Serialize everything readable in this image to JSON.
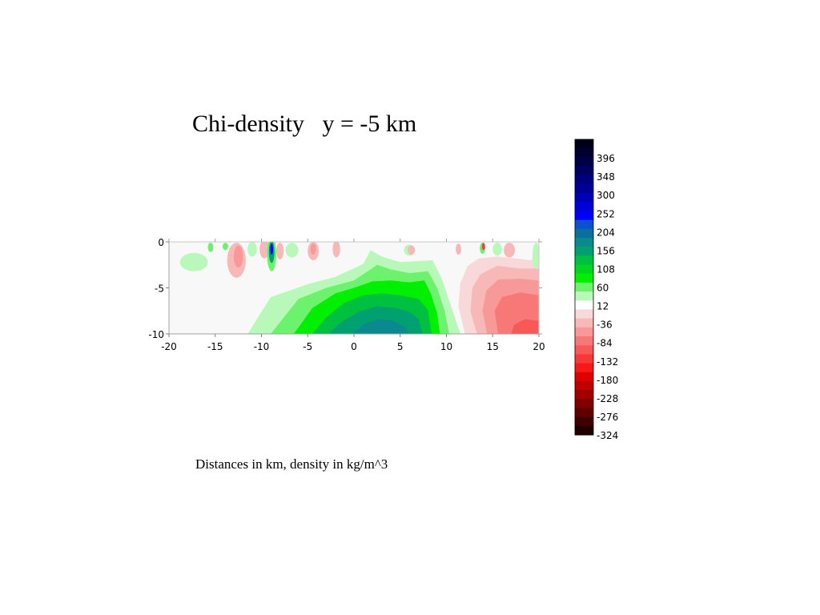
{
  "title": "Chi-density   y = -5 km",
  "caption": "Distances in km, density in kg/m^3",
  "chart_data": {
    "type": "heatmap",
    "xlim": [
      -20,
      20
    ],
    "ylim": [
      -10,
      0
    ],
    "x_ticks": [
      -20,
      -15,
      -10,
      -5,
      0,
      5,
      10,
      15,
      20
    ],
    "x_tick_labels": [
      "-20",
      "-15",
      "-10",
      "-5",
      "0",
      "5",
      "10",
      "15",
      "20"
    ],
    "y_ticks": [
      0,
      -5,
      -10
    ],
    "y_tick_labels": [
      "0",
      "-5",
      "-10"
    ],
    "colorbar": {
      "tick_values": [
        396,
        348,
        300,
        252,
        204,
        156,
        108,
        60,
        12,
        -36,
        -84,
        -132,
        -180,
        -228,
        -276,
        -324
      ],
      "tick_labels": [
        "396",
        "348",
        "300",
        "252",
        "204",
        "156",
        "108",
        "60",
        "12",
        "-36",
        "-84",
        "-132",
        "-180",
        "-228",
        "-276",
        "-324"
      ],
      "levels": [
        {
          "value": 444,
          "color": "#000018"
        },
        {
          "value": 420,
          "color": "#000030"
        },
        {
          "value": 396,
          "color": "#00004a"
        },
        {
          "value": 372,
          "color": "#000064"
        },
        {
          "value": 348,
          "color": "#00007e"
        },
        {
          "value": 324,
          "color": "#000098"
        },
        {
          "value": 300,
          "color": "#0000b8"
        },
        {
          "value": 276,
          "color": "#0000d8"
        },
        {
          "value": 252,
          "color": "#0000f8"
        },
        {
          "value": 228,
          "color": "#0a50d0"
        },
        {
          "value": 204,
          "color": "#0a6f9a"
        },
        {
          "value": 180,
          "color": "#0a8a8e"
        },
        {
          "value": 156,
          "color": "#00a070"
        },
        {
          "value": 132,
          "color": "#00c040"
        },
        {
          "value": 108,
          "color": "#00d820"
        },
        {
          "value": 84,
          "color": "#00f000"
        },
        {
          "value": 60,
          "color": "#6cf26c"
        },
        {
          "value": 36,
          "color": "#b8f8b8"
        },
        {
          "value": 12,
          "color": "#ffffff"
        },
        {
          "value": -12,
          "color": "#f8d8d8"
        },
        {
          "value": -36,
          "color": "#f8b8b8"
        },
        {
          "value": -60,
          "color": "#f89898"
        },
        {
          "value": -84,
          "color": "#f87878"
        },
        {
          "value": -108,
          "color": "#f85858"
        },
        {
          "value": -132,
          "color": "#f83838"
        },
        {
          "value": -156,
          "color": "#f81818"
        },
        {
          "value": -180,
          "color": "#e00000"
        },
        {
          "value": -204,
          "color": "#c00000"
        },
        {
          "value": -228,
          "color": "#a00000"
        },
        {
          "value": -252,
          "color": "#800000"
        },
        {
          "value": -276,
          "color": "#600000"
        },
        {
          "value": -300,
          "color": "#400000"
        },
        {
          "value": -324,
          "color": "#200000"
        }
      ]
    },
    "regions": [
      {
        "level": 36,
        "color": "#b8f8b8",
        "points": [
          [
            -11.5,
            -10
          ],
          [
            -9,
            -6
          ],
          [
            -5,
            -4.6
          ],
          [
            -2,
            -3.8
          ],
          [
            1,
            -2.4
          ],
          [
            1.8,
            -0.9
          ],
          [
            3,
            -1.6
          ],
          [
            5,
            -2.2
          ],
          [
            8.5,
            -2.0
          ],
          [
            9.5,
            -4
          ],
          [
            10.5,
            -7
          ],
          [
            11.5,
            -10
          ]
        ]
      },
      {
        "level": 60,
        "color": "#6cf26c",
        "points": [
          [
            -9,
            -10
          ],
          [
            -6,
            -6.2
          ],
          [
            -3,
            -5.0
          ],
          [
            0,
            -4.2
          ],
          [
            1.5,
            -3.2
          ],
          [
            2.5,
            -2.5
          ],
          [
            4,
            -3
          ],
          [
            6,
            -3.4
          ],
          [
            8.0,
            -3.2
          ],
          [
            9,
            -5
          ],
          [
            9.8,
            -7.5
          ],
          [
            10.3,
            -10
          ]
        ]
      },
      {
        "level": 108,
        "color": "#00f000",
        "points": [
          [
            -6.5,
            -10
          ],
          [
            -4.5,
            -7.2
          ],
          [
            -2,
            -5.6
          ],
          [
            0,
            -5.0
          ],
          [
            2,
            -4.3
          ],
          [
            4,
            -4.2
          ],
          [
            6,
            -4.4
          ],
          [
            7.6,
            -4.2
          ],
          [
            8.3,
            -5.6
          ],
          [
            9,
            -7.8
          ],
          [
            9.3,
            -10
          ]
        ]
      },
      {
        "level": 132,
        "color": "#00c040",
        "points": [
          [
            -4.5,
            -10
          ],
          [
            -3,
            -8.2
          ],
          [
            -1,
            -6.6
          ],
          [
            1,
            -5.8
          ],
          [
            3,
            -5.6
          ],
          [
            5,
            -5.8
          ],
          [
            7,
            -6.2
          ],
          [
            8,
            -7.4
          ],
          [
            8.4,
            -10
          ]
        ]
      },
      {
        "level": 156,
        "color": "#00a070",
        "points": [
          [
            -2.8,
            -10
          ],
          [
            -1.5,
            -8.8
          ],
          [
            0.5,
            -7.6
          ],
          [
            2.5,
            -7.0
          ],
          [
            4.5,
            -7.2
          ],
          [
            6,
            -7.6
          ],
          [
            7,
            -8.4
          ],
          [
            7.4,
            -10
          ]
        ]
      },
      {
        "level": 180,
        "color": "#0a8a8e",
        "points": [
          [
            -0.2,
            -10
          ],
          [
            1,
            -9
          ],
          [
            2.5,
            -8.4
          ],
          [
            4,
            -8.5
          ],
          [
            5.5,
            -9.2
          ],
          [
            6,
            -10
          ]
        ]
      },
      {
        "level": -12,
        "color": "#f8d8d8",
        "points": [
          [
            12,
            -10
          ],
          [
            11.3,
            -7
          ],
          [
            11.5,
            -4.5
          ],
          [
            12.3,
            -2.6
          ],
          [
            13.5,
            -1.8
          ],
          [
            15.5,
            -1.6
          ],
          [
            17.5,
            -1.8
          ],
          [
            19,
            -2.0
          ],
          [
            20,
            -1.7
          ],
          [
            20,
            -10
          ]
        ]
      },
      {
        "level": -36,
        "color": "#f8b8b8",
        "points": [
          [
            13.3,
            -10
          ],
          [
            12.6,
            -7.5
          ],
          [
            12.8,
            -5
          ],
          [
            13.7,
            -3.5
          ],
          [
            15.5,
            -2.6
          ],
          [
            18,
            -2.9
          ],
          [
            20,
            -2.9
          ],
          [
            20,
            -10
          ]
        ]
      },
      {
        "level": -60,
        "color": "#f89898",
        "points": [
          [
            14.4,
            -10
          ],
          [
            13.9,
            -7.5
          ],
          [
            14.3,
            -5.3
          ],
          [
            15.6,
            -4.1
          ],
          [
            18,
            -4.0
          ],
          [
            20,
            -4.2
          ],
          [
            20,
            -10
          ]
        ]
      },
      {
        "level": -84,
        "color": "#f87878",
        "points": [
          [
            15.6,
            -10
          ],
          [
            15.2,
            -7.5
          ],
          [
            16.0,
            -6.0
          ],
          [
            18,
            -5.5
          ],
          [
            20,
            -5.8
          ],
          [
            20,
            -10
          ]
        ]
      },
      {
        "level": -108,
        "color": "#f85858",
        "points": [
          [
            17,
            -10
          ],
          [
            17.3,
            -9
          ],
          [
            18.5,
            -8.4
          ],
          [
            20,
            -8.6
          ],
          [
            20,
            -10
          ]
        ]
      }
    ],
    "blobs": [
      {
        "level": 36,
        "color": "#b8f8b8",
        "cx": -17.3,
        "cy": -2.2,
        "rx": 1.5,
        "ry": 1.0
      },
      {
        "level": 60,
        "color": "#6cf26c",
        "cx": -15.5,
        "cy": -0.6,
        "rx": 0.3,
        "ry": 0.5
      },
      {
        "level": 60,
        "color": "#6cf26c",
        "cx": -13.9,
        "cy": -0.5,
        "rx": 0.3,
        "ry": 0.4
      },
      {
        "level": -36,
        "color": "#f8b8b8",
        "cx": -12.7,
        "cy": -2.0,
        "rx": 1.0,
        "ry": 1.9
      },
      {
        "level": -60,
        "color": "#f89898",
        "cx": -12.5,
        "cy": -1.6,
        "rx": 0.5,
        "ry": 1.2
      },
      {
        "level": 36,
        "color": "#b8f8b8",
        "cx": -11.0,
        "cy": -0.8,
        "rx": 0.5,
        "ry": 0.8
      },
      {
        "level": -36,
        "color": "#f8b8b8",
        "cx": -9.7,
        "cy": -0.8,
        "rx": 0.5,
        "ry": 1.0
      },
      {
        "level": 60,
        "color": "#6cf26c",
        "cx": -8.9,
        "cy": -1.3,
        "rx": 0.5,
        "ry": 1.9
      },
      {
        "level": 156,
        "color": "#00a070",
        "cx": -8.9,
        "cy": -1.1,
        "rx": 0.3,
        "ry": 1.2
      },
      {
        "level": 252,
        "color": "#0000f8",
        "cx": -8.9,
        "cy": -0.8,
        "rx": 0.15,
        "ry": 0.6
      },
      {
        "level": -36,
        "color": "#f8b8b8",
        "cx": -8.0,
        "cy": -1.0,
        "rx": 0.4,
        "ry": 0.9
      },
      {
        "level": 36,
        "color": "#b8f8b8",
        "cx": -6.7,
        "cy": -0.9,
        "rx": 0.7,
        "ry": 0.8
      },
      {
        "level": -36,
        "color": "#f8b8b8",
        "cx": -4.4,
        "cy": -1.0,
        "rx": 0.6,
        "ry": 1.0
      },
      {
        "level": -60,
        "color": "#f89898",
        "cx": -4.4,
        "cy": -0.8,
        "rx": 0.3,
        "ry": 0.6
      },
      {
        "level": -36,
        "color": "#f8b8b8",
        "cx": -1.9,
        "cy": -0.8,
        "rx": 0.4,
        "ry": 0.9
      },
      {
        "level": 36,
        "color": "#b8f8b8",
        "cx": 6.0,
        "cy": -0.9,
        "rx": 0.6,
        "ry": 0.6
      },
      {
        "level": -36,
        "color": "#f8b8b8",
        "cx": 6.2,
        "cy": -0.9,
        "rx": 0.4,
        "ry": 0.5
      },
      {
        "level": -36,
        "color": "#f8b8b8",
        "cx": 11.3,
        "cy": -0.8,
        "rx": 0.3,
        "ry": 0.6
      },
      {
        "level": 60,
        "color": "#6cf26c",
        "cx": 13.9,
        "cy": -0.7,
        "rx": 0.3,
        "ry": 0.6
      },
      {
        "level": -132,
        "color": "#f83838",
        "cx": 14.0,
        "cy": -0.5,
        "rx": 0.15,
        "ry": 0.4
      },
      {
        "level": 36,
        "color": "#b8f8b8",
        "cx": 15.5,
        "cy": -0.8,
        "rx": 0.5,
        "ry": 0.7
      },
      {
        "level": -36,
        "color": "#f8b8b8",
        "cx": 16.8,
        "cy": -0.9,
        "rx": 0.6,
        "ry": 0.8
      },
      {
        "level": 36,
        "color": "#b8f8b8",
        "cx": 19.7,
        "cy": -1.5,
        "rx": 0.4,
        "ry": 1.4
      }
    ]
  }
}
